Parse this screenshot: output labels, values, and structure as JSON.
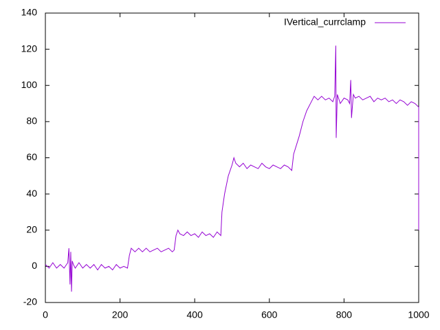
{
  "chart_data": {
    "type": "line",
    "series": [
      {
        "name": "IVertical_currclamp",
        "color": "#9400d3",
        "x": [
          0,
          10,
          20,
          30,
          40,
          50,
          60,
          63,
          66,
          68,
          70,
          72,
          75,
          80,
          90,
          100,
          110,
          120,
          130,
          140,
          150,
          160,
          170,
          180,
          190,
          200,
          210,
          220,
          225,
          230,
          240,
          250,
          260,
          270,
          280,
          290,
          300,
          310,
          320,
          330,
          340,
          345,
          350,
          355,
          360,
          370,
          380,
          390,
          400,
          410,
          420,
          430,
          440,
          450,
          460,
          470,
          473,
          480,
          490,
          500,
          505,
          510,
          520,
          530,
          540,
          550,
          560,
          570,
          580,
          590,
          600,
          610,
          620,
          630,
          640,
          650,
          660,
          665,
          680,
          690,
          700,
          710,
          720,
          730,
          740,
          750,
          760,
          770,
          775,
          778,
          779,
          782,
          790,
          800,
          810,
          815,
          818,
          820,
          825,
          830,
          840,
          850,
          860,
          870,
          880,
          890,
          900,
          910,
          920,
          930,
          940,
          950,
          960,
          970,
          980,
          990,
          1000,
          1000
        ],
        "values": [
          1,
          -1,
          2,
          -1,
          1,
          -1,
          2,
          10,
          -10,
          8,
          -14,
          3,
          1,
          -1,
          2,
          -1,
          1,
          -1,
          1,
          -2,
          1,
          -1,
          0,
          -2,
          1,
          -1,
          0,
          -1,
          6,
          10,
          8,
          10,
          8,
          10,
          8,
          9,
          10,
          8,
          9,
          10,
          8,
          9,
          17,
          20,
          18,
          17,
          19,
          17,
          18,
          16,
          19,
          17,
          18,
          16,
          19,
          17,
          30,
          40,
          50,
          56,
          60,
          57,
          55,
          57,
          54,
          56,
          55,
          54,
          57,
          55,
          54,
          56,
          55,
          54,
          56,
          55,
          53,
          62,
          72,
          80,
          86,
          90,
          94,
          92,
          94,
          92,
          93,
          91,
          94,
          122,
          71,
          95,
          90,
          93,
          92,
          90,
          103,
          82,
          95,
          93,
          94,
          92,
          93,
          94,
          91,
          93,
          92,
          93,
          91,
          92,
          90,
          92,
          91,
          89,
          91,
          90,
          88,
          20
        ]
      }
    ],
    "xlim": [
      0,
      1000
    ],
    "xticks": [
      0,
      200,
      400,
      600,
      800,
      1000
    ],
    "ylim": [
      -20,
      140
    ],
    "yticks": [
      -20,
      0,
      20,
      40,
      60,
      80,
      100,
      120,
      140
    ],
    "grid": false,
    "legend": "top-right"
  }
}
